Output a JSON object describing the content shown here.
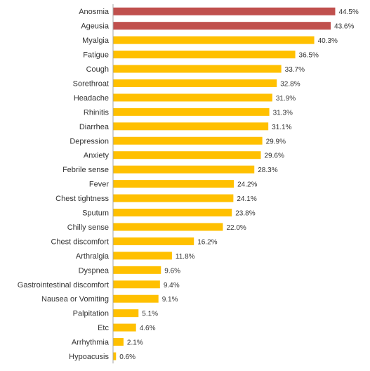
{
  "chart_data": {
    "type": "bar",
    "orientation": "horizontal",
    "categories": [
      "Anosmia",
      "Ageusia",
      "Myalgia",
      "Fatigue",
      "Cough",
      "Sorethroat",
      "Headache",
      "Rhinitis",
      "Diarrhea",
      "Depression",
      "Anxiety",
      "Febrile sense",
      "Fever",
      "Chest tightness",
      "Sputum",
      "Chilly sense",
      "Chest discomfort",
      "Arthralgia",
      "Dyspnea",
      "Gastrointestinal discomfort",
      "Nausea or Vomiting",
      "Palpitation",
      "Etc",
      "Arrhythmia",
      "Hypoacusis"
    ],
    "values": [
      44.5,
      43.6,
      40.3,
      36.5,
      33.7,
      32.8,
      31.9,
      31.3,
      31.1,
      29.9,
      29.6,
      28.3,
      24.2,
      24.1,
      23.8,
      22.0,
      16.2,
      11.8,
      9.6,
      9.4,
      9.1,
      5.1,
      4.6,
      2.1,
      0.6
    ],
    "value_labels": [
      "44.5%",
      "43.6%",
      "40.3%",
      "36.5%",
      "33.7%",
      "32.8%",
      "31.9%",
      "31.3%",
      "31.1%",
      "29.9%",
      "29.6%",
      "28.3%",
      "24.2%",
      "24.1%",
      "23.8%",
      "22.0%",
      "16.2%",
      "11.8%",
      "9.6%",
      "9.4%",
      "9.1%",
      "5.1%",
      "4.6%",
      "2.1%",
      "0.6%"
    ],
    "highlighted_categories": [
      "Anosmia",
      "Ageusia"
    ],
    "colors": {
      "highlight": "#c0504d",
      "default": "#ffc000",
      "axis": "#a6a6a6"
    },
    "xlim": [
      0,
      45
    ],
    "grid": false,
    "legend": "none",
    "title": "",
    "xlabel": "",
    "ylabel": ""
  }
}
